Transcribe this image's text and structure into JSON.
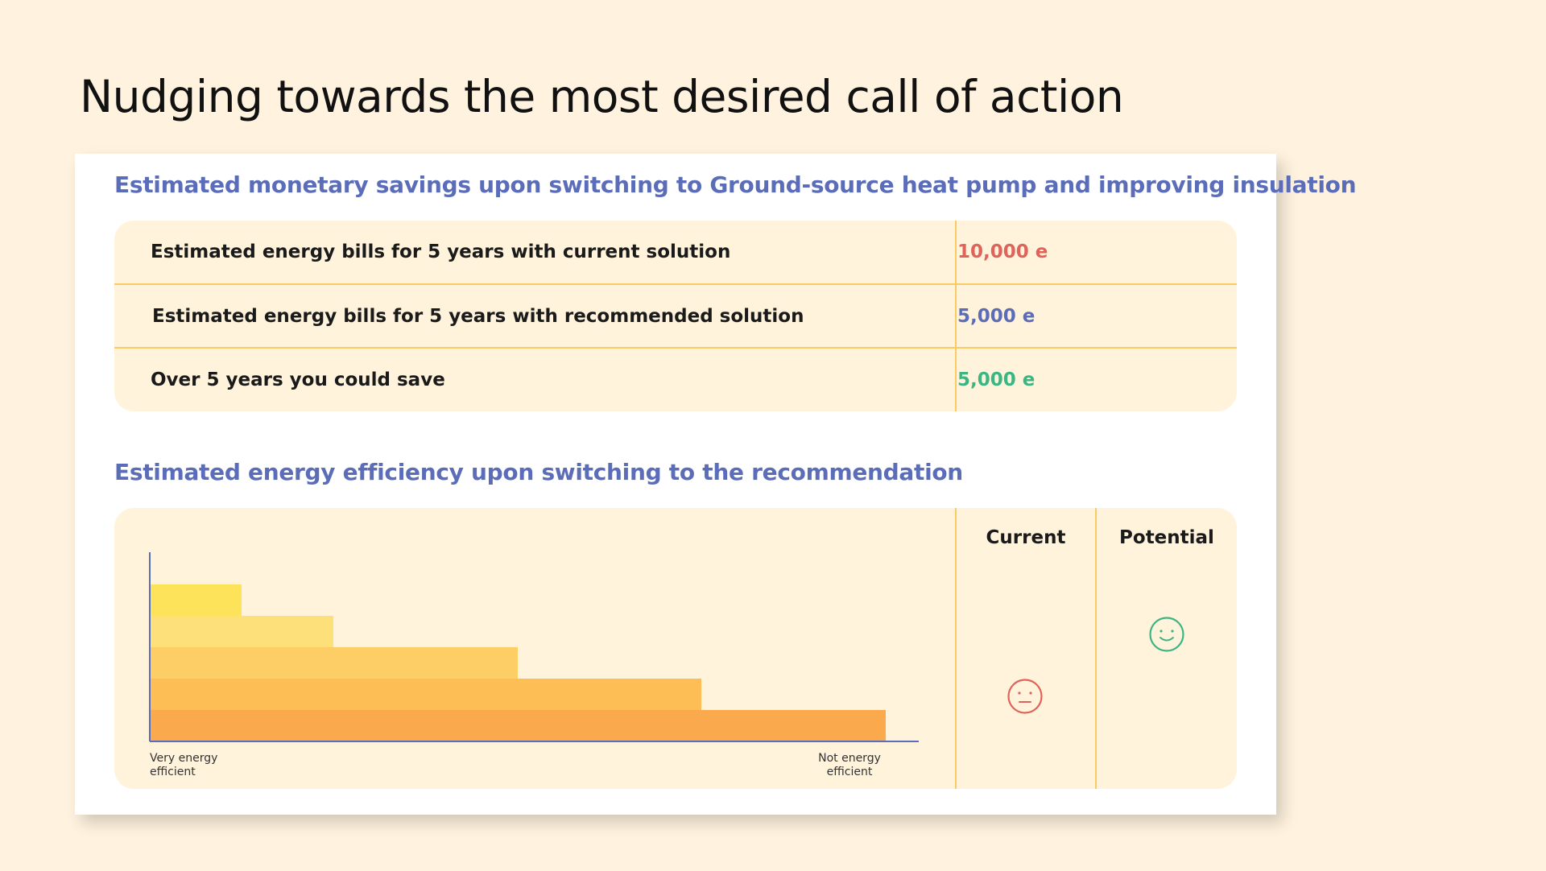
{
  "page": {
    "title": "Nudging towards the most desired call of action"
  },
  "savings": {
    "title": "Estimated monetary savings upon switching to Ground-source heat pump and improving insulation",
    "rows": [
      {
        "label": "Estimated energy bills for 5 years with current solution",
        "value": "10,000 e",
        "color": "#e0635a"
      },
      {
        "label": "Estimated energy bills for 5 years with recommended solution",
        "value": "5,000 e",
        "color": "#5b6db8"
      },
      {
        "label": "Over 5 years you could save",
        "value": "5,000 e",
        "color": "#3db582"
      }
    ]
  },
  "efficiency": {
    "title": "Estimated energy efficiency upon switching to the recommendation",
    "columns": {
      "current": "Current",
      "potential": "Potential"
    },
    "axis": {
      "left_label": "Very energy efficient",
      "right_label": "Not energy efficient"
    },
    "bands": [
      {
        "level": 1,
        "length_fraction": 0.12,
        "color": "#fde35a"
      },
      {
        "level": 2,
        "length_fraction": 0.24,
        "color": "#fde07a"
      },
      {
        "level": 3,
        "length_fraction": 0.48,
        "color": "#fdcd66"
      },
      {
        "level": 4,
        "length_fraction": 0.72,
        "color": "#fdbf55"
      },
      {
        "level": 5,
        "length_fraction": 0.96,
        "color": "#fba94d"
      }
    ],
    "current_rating": {
      "level": 4,
      "face": "neutral-face-icon",
      "color": "#e0635a"
    },
    "potential_rating": {
      "level": 2,
      "face": "smiling-face-icon",
      "color": "#3db582"
    },
    "divider_color": "#f9cc63",
    "axis_color": "#5b6db8"
  }
}
